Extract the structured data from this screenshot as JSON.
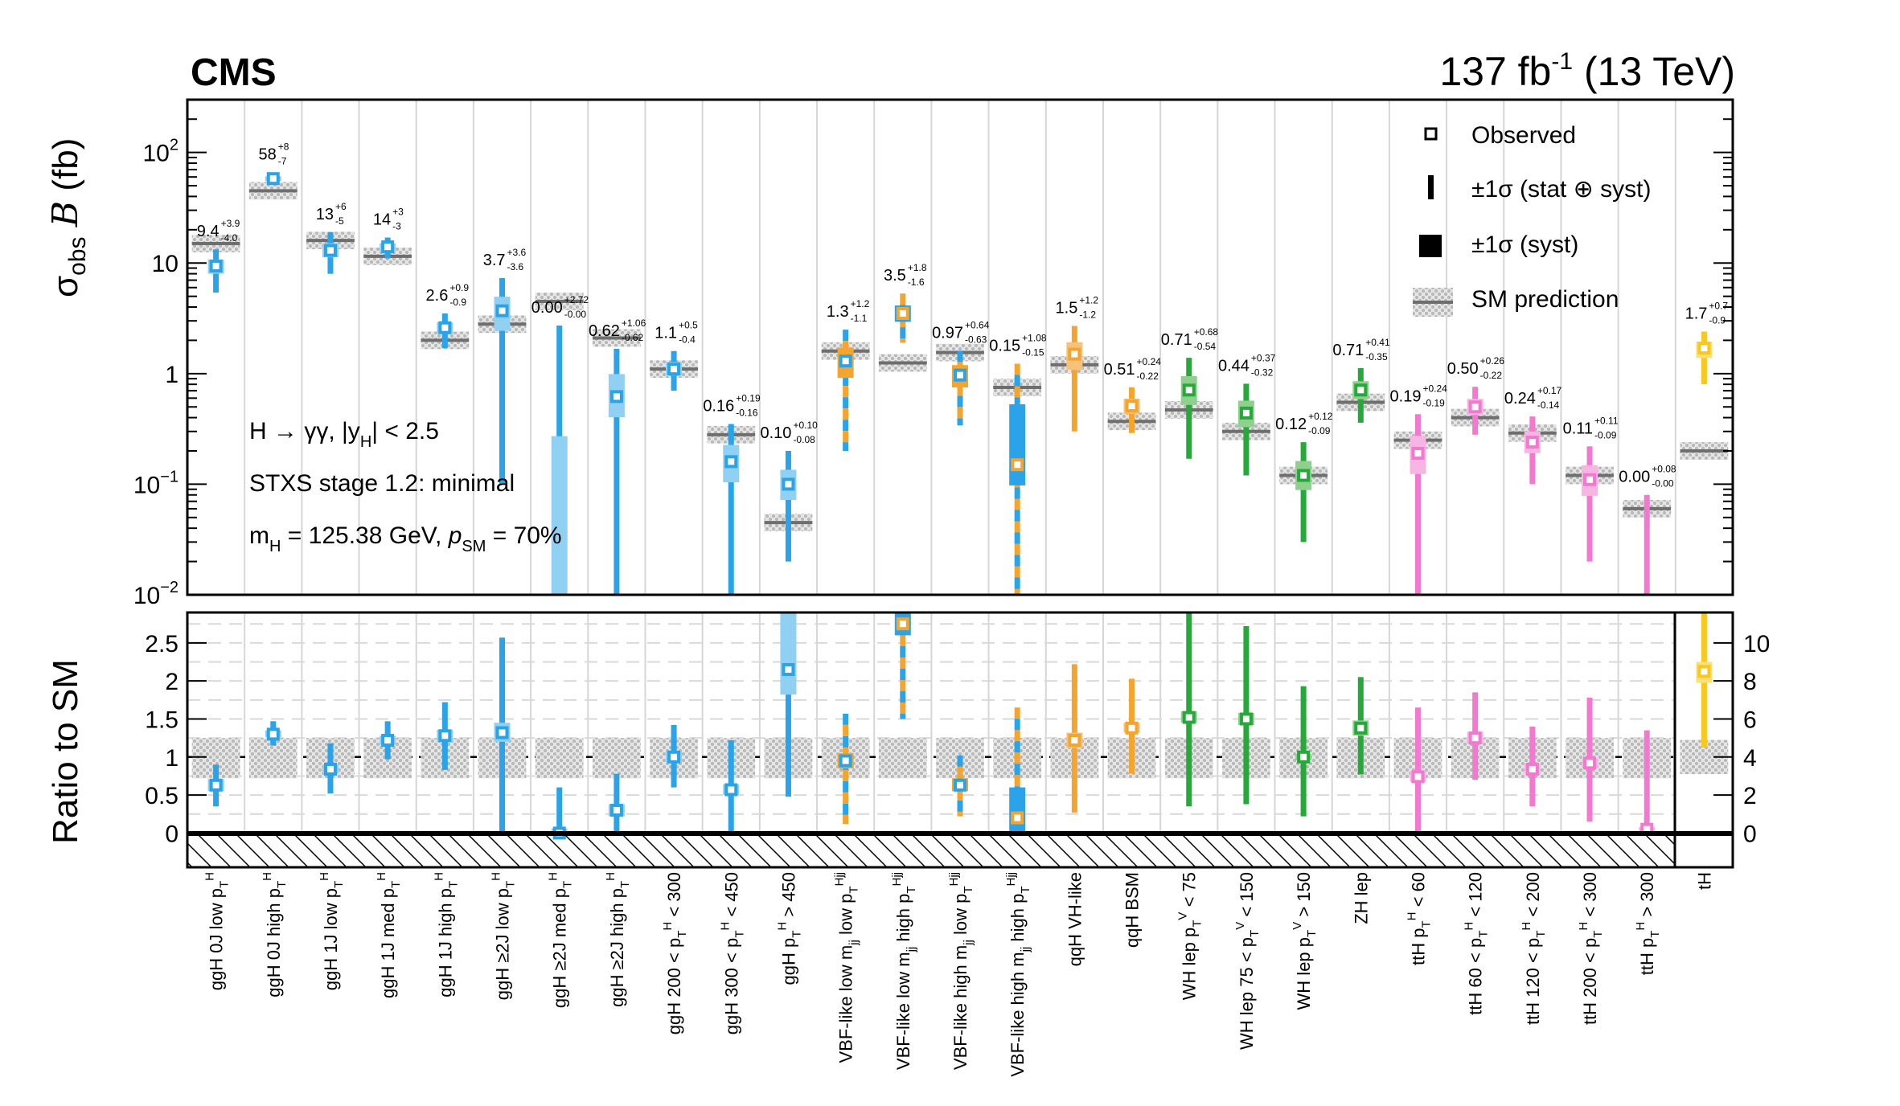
{
  "header": {
    "experiment": "CMS",
    "lumi": "137 fb",
    "lumi_exp": "-1",
    "energy": "(13 TeV)"
  },
  "annotations": {
    "line1": "H → γγ, |y",
    "line1_sub": "H",
    "line1_tail": "| < 2.5",
    "line2": "STXS stage 1.2: minimal",
    "line3_m": "m",
    "line3_msub": "H",
    "line3_mval": " = 125.38 GeV, ",
    "line3_p": "p",
    "line3_psub": "SM",
    "line3_pval": " = 70%"
  },
  "legend": [
    {
      "key": "observed",
      "label": "Observed"
    },
    {
      "key": "total",
      "label": "±1σ (stat ⊕ syst)"
    },
    {
      "key": "syst",
      "label": "±1σ (syst)"
    },
    {
      "key": "sm",
      "label": "SM prediction"
    }
  ],
  "axes": {
    "top_ylabel_sigma": "σ",
    "top_ylabel_sub": "obs",
    "top_ylabel_B": "B",
    "top_ylabel_unit": "(fb)",
    "top_scale": "log",
    "top_ylim": [
      0.01,
      300
    ],
    "top_ticks": [
      {
        "v": 100,
        "base": "10",
        "exp": "2"
      },
      {
        "v": 10,
        "base": "10",
        "exp": ""
      },
      {
        "v": 1,
        "base": "1",
        "exp": ""
      },
      {
        "v": 0.1,
        "base": "10",
        "exp": "−1"
      },
      {
        "v": 0.01,
        "base": "10",
        "exp": "−2"
      }
    ],
    "bottom_ylabel": "Ratio to SM",
    "bottom_ylim": [
      -0.45,
      2.9
    ],
    "bottom_ticks": [
      "0",
      "0.5",
      "1",
      "1.5",
      "2",
      "2.5"
    ],
    "right_ylim": [
      -1.8,
      11.6
    ],
    "right_ticks": [
      "0",
      "2",
      "4",
      "6",
      "8",
      "10"
    ]
  },
  "colors": {
    "ggH": "#2aa3e8",
    "ggH_light": "#8fd0f3",
    "VBF_a": "#2aa3e8",
    "VBF_b": "#f3a530",
    "qqH": "#f3a530",
    "qqH_light": "#f6c27a",
    "WH": "#27a83a",
    "WH_light": "#8fd08f",
    "ZH": "#27a83a",
    "ttH": "#f279cf",
    "ttH_light": "#f7b5e3",
    "tH": "#f8c81e",
    "tH_light": "#fbe07a",
    "sm": "#8a8a8a",
    "band": "#cccccc"
  },
  "chart_data": {
    "type": "scatter",
    "categories": [
      {
        "name": "ggH 0J low pT",
        "label": "ggH 0J low p",
        "sup": "H",
        "grp": "ggH",
        "obs": 9.4,
        "up": 3.9,
        "dn": 4.0,
        "label_text": "9.4",
        "up_text": "+3.9",
        "dn_text": "-4.0",
        "sm": 15,
        "ratio": 0.63,
        "r_lo": 0.35,
        "r_hi": 0.9,
        "rs_lo": 0.55,
        "rs_hi": 0.71
      },
      {
        "name": "ggH 0J high pT",
        "label": "ggH 0J high p",
        "sup": "H",
        "grp": "ggH",
        "obs": 58,
        "up": 8,
        "dn": 7,
        "label_text": "58",
        "up_text": "+8",
        "dn_text": "-7",
        "sm": 45,
        "ratio": 1.3,
        "r_lo": 1.15,
        "r_hi": 1.47,
        "rs_lo": 1.26,
        "rs_hi": 1.35
      },
      {
        "name": "ggH 1J low pT",
        "label": "ggH 1J low p",
        "sup": "H",
        "grp": "ggH",
        "obs": 13,
        "up": 6,
        "dn": 5,
        "label_text": "13",
        "up_text": "+6",
        "dn_text": "-5",
        "sm": 16,
        "ratio": 0.84,
        "r_lo": 0.52,
        "r_hi": 1.18,
        "rs_lo": 0.78,
        "rs_hi": 0.9
      },
      {
        "name": "ggH 1J med pT",
        "label": "ggH 1J med p",
        "sup": "H",
        "grp": "ggH",
        "obs": 14,
        "up": 3,
        "dn": 3,
        "label_text": "14",
        "up_text": "+3",
        "dn_text": "-3",
        "sm": 11.5,
        "ratio": 1.22,
        "r_lo": 0.97,
        "r_hi": 1.47,
        "rs_lo": 1.16,
        "rs_hi": 1.28
      },
      {
        "name": "ggH 1J high pT",
        "label": "ggH 1J high p",
        "sup": "H",
        "grp": "ggH",
        "obs": 2.6,
        "up": 0.9,
        "dn": 0.9,
        "label_text": "2.6",
        "up_text": "+0.9",
        "dn_text": "-0.9",
        "sm": 2.0,
        "ratio": 1.28,
        "r_lo": 0.83,
        "r_hi": 1.72,
        "rs_lo": 1.2,
        "rs_hi": 1.36
      },
      {
        "name": "ggH >=2J low pT",
        "label": "ggH ≥2J low p",
        "sup": "H",
        "grp": "ggH",
        "obs": 3.7,
        "up": 3.6,
        "dn": 3.6,
        "label_text": "3.7",
        "up_text": "+3.6",
        "dn_text": "-3.6",
        "sm": 2.8,
        "ratio": 1.32,
        "r_lo": 0.02,
        "r_hi": 2.57,
        "rs_lo": 1.2,
        "rs_hi": 1.45
      },
      {
        "name": "ggH >=2J med pT",
        "label": "ggH ≥2J med p",
        "sup": "H",
        "grp": "ggH",
        "obs": 0.0,
        "up": 2.72,
        "dn": 0.0,
        "label_text": "0.00",
        "up_text": "+2.72",
        "dn_text": "-0.00",
        "sm": 4.5,
        "ratio": 0.0,
        "r_lo": 0.0,
        "r_hi": 0.6,
        "rs_lo": 0.0,
        "rs_hi": 0.06
      },
      {
        "name": "ggH >=2J high pT",
        "label": "ggH ≥2J high p",
        "sup": "H",
        "grp": "ggH",
        "obs": 0.62,
        "up": 1.06,
        "dn": 0.62,
        "label_text": "0.62",
        "up_text": "+1.06",
        "dn_text": "-0.62",
        "sm": 2.1,
        "ratio": 0.3,
        "r_lo": 0.0,
        "r_hi": 0.78,
        "rs_lo": 0.22,
        "rs_hi": 0.38
      },
      {
        "name": "ggH 200 < pT < 300",
        "label": "ggH 200 < p",
        "tail": " < 300",
        "sup": "H",
        "grp": "ggH",
        "obs": 1.1,
        "up": 0.5,
        "dn": 0.4,
        "label_text": "1.1",
        "up_text": "+0.5",
        "dn_text": "-0.4",
        "sm": 1.1,
        "ratio": 1.0,
        "r_lo": 0.6,
        "r_hi": 1.42,
        "rs_lo": 0.93,
        "rs_hi": 1.07
      },
      {
        "name": "ggH 300 < pT < 450",
        "label": "ggH 300 < p",
        "tail": " < 450",
        "sup": "H",
        "grp": "ggH",
        "obs": 0.16,
        "up": 0.19,
        "dn": 0.16,
        "label_text": "0.16",
        "up_text": "+0.19",
        "dn_text": "-0.16",
        "sm": 0.28,
        "ratio": 0.57,
        "r_lo": 0.0,
        "r_hi": 1.22,
        "rs_lo": 0.5,
        "rs_hi": 0.64
      },
      {
        "name": "ggH pT > 450",
        "label": "ggH p",
        "tail": " > 450",
        "sup": "H",
        "grp": "ggH",
        "obs": 0.1,
        "up": 0.1,
        "dn": 0.08,
        "label_text": "0.10",
        "up_text": "+0.10",
        "dn_text": "-0.08",
        "sm": 0.045,
        "ratio": 2.15,
        "r_lo": 0.48,
        "r_hi": 2.9,
        "rs_lo": 1.82,
        "rs_hi": 2.9
      },
      {
        "name": "VBF-like low mjj low pTHjj",
        "label": "VBF-like low m",
        "jj": true,
        "tail2": " low p",
        "sup": "Hjj",
        "grp": "VBF",
        "obs": 1.3,
        "up": 1.2,
        "dn": 1.1,
        "label_text": "1.3",
        "up_text": "+1.2",
        "dn_text": "-1.1",
        "sm": 1.6,
        "ratio": 0.95,
        "r_lo": 0.12,
        "r_hi": 1.57,
        "rs_lo": 0.85,
        "rs_hi": 1.05
      },
      {
        "name": "VBF-like low mjj high pTHjj",
        "label": "VBF-like low m",
        "jj": true,
        "tail2": " high p",
        "sup": "Hjj",
        "grp": "VBFq",
        "obs": 3.5,
        "up": 1.8,
        "dn": 1.6,
        "label_text": "3.5",
        "up_text": "+1.8",
        "dn_text": "-1.6",
        "sm": 1.25,
        "ratio": 2.75,
        "r_lo": 1.5,
        "r_hi": 2.9,
        "rs_lo": 2.6,
        "rs_hi": 2.9
      },
      {
        "name": "VBF-like high mjj low pTHjj",
        "label": "VBF-like high m",
        "jj": true,
        "tail2": " low p",
        "sup": "Hjj",
        "grp": "VBF",
        "obs": 0.97,
        "up": 0.64,
        "dn": 0.63,
        "label_text": "0.97",
        "up_text": "+0.64",
        "dn_text": "-0.63",
        "sm": 1.55,
        "ratio": 0.63,
        "r_lo": 0.22,
        "r_hi": 1.02,
        "rs_lo": 0.55,
        "rs_hi": 0.72
      },
      {
        "name": "VBF-like high mjj high pTHjj",
        "label": "VBF-like high m",
        "jj": true,
        "tail2": " high p",
        "sup": "Hjj",
        "grp": "VBFq",
        "obs": 0.15,
        "up": 1.08,
        "dn": 0.15,
        "label_text": "0.15",
        "up_text": "+1.08",
        "dn_text": "-0.15",
        "sm": 0.75,
        "ratio": 0.2,
        "r_lo": 0.0,
        "r_hi": 1.65,
        "rs_lo": 0.0,
        "rs_hi": 0.6
      },
      {
        "name": "qqH VH-like",
        "label": "qqH VH-like",
        "sup": "",
        "grp": "qqH",
        "obs": 1.5,
        "up": 1.2,
        "dn": 1.2,
        "label_text": "1.5",
        "up_text": "+1.2",
        "dn_text": "-1.2",
        "sm": 1.2,
        "ratio": 1.22,
        "r_lo": 0.27,
        "r_hi": 2.22,
        "rs_lo": 1.12,
        "rs_hi": 1.32
      },
      {
        "name": "qqH BSM",
        "label": "qqH BSM",
        "sup": "",
        "grp": "qqH",
        "obs": 0.51,
        "up": 0.24,
        "dn": 0.22,
        "label_text": "0.51",
        "up_text": "+0.24",
        "dn_text": "-0.22",
        "sm": 0.37,
        "ratio": 1.38,
        "r_lo": 0.78,
        "r_hi": 2.03,
        "rs_lo": 1.32,
        "rs_hi": 1.45
      },
      {
        "name": "WH lep pTV < 75",
        "label": "WH lep p",
        "tail": " < 75",
        "sup": "V",
        "grp": "WH",
        "obs": 0.71,
        "up": 0.68,
        "dn": 0.54,
        "label_text": "0.71",
        "up_text": "+0.68",
        "dn_text": "-0.54",
        "sm": 0.47,
        "ratio": 1.52,
        "r_lo": 0.35,
        "r_hi": 2.9,
        "rs_lo": 1.45,
        "rs_hi": 1.6
      },
      {
        "name": "WH lep 75 < pTV < 150",
        "label": "WH lep 75 < p",
        "tail": " < 150",
        "sup": "V",
        "grp": "WH",
        "obs": 0.44,
        "up": 0.37,
        "dn": 0.32,
        "label_text": "0.44",
        "up_text": "+0.37",
        "dn_text": "-0.32",
        "sm": 0.3,
        "ratio": 1.5,
        "r_lo": 0.38,
        "r_hi": 2.72,
        "rs_lo": 1.42,
        "rs_hi": 1.58
      },
      {
        "name": "WH lep pTV > 150",
        "label": "WH lep p",
        "tail": " > 150",
        "sup": "V",
        "grp": "WH",
        "obs": 0.12,
        "up": 0.12,
        "dn": 0.09,
        "label_text": "0.12",
        "up_text": "+0.12",
        "dn_text": "-0.09",
        "sm": 0.12,
        "ratio": 1.0,
        "r_lo": 0.22,
        "r_hi": 1.93,
        "rs_lo": 0.96,
        "rs_hi": 1.04
      },
      {
        "name": "ZH lep",
        "label": "ZH lep",
        "sup": "",
        "grp": "ZH",
        "obs": 0.71,
        "up": 0.41,
        "dn": 0.35,
        "label_text": "0.71",
        "up_text": "+0.41",
        "dn_text": "-0.35",
        "sm": 0.55,
        "ratio": 1.38,
        "r_lo": 0.77,
        "r_hi": 2.05,
        "rs_lo": 1.28,
        "rs_hi": 1.48
      },
      {
        "name": "ttH pTH < 60",
        "label": "ttH p",
        "tail": " < 60",
        "sup": "H",
        "grp": "ttH",
        "obs": 0.19,
        "up": 0.24,
        "dn": 0.19,
        "label_text": "0.19",
        "up_text": "+0.24",
        "dn_text": "-0.19",
        "sm": 0.25,
        "ratio": 0.74,
        "r_lo": 0.0,
        "r_hi": 1.65,
        "rs_lo": 0.67,
        "rs_hi": 0.82
      },
      {
        "name": "ttH 60 < pTH < 120",
        "label": "ttH 60 < p",
        "tail": " < 120",
        "sup": "H",
        "grp": "ttH",
        "obs": 0.5,
        "up": 0.26,
        "dn": 0.22,
        "label_text": "0.50",
        "up_text": "+0.26",
        "dn_text": "-0.22",
        "sm": 0.4,
        "ratio": 1.25,
        "r_lo": 0.7,
        "r_hi": 1.85,
        "rs_lo": 1.17,
        "rs_hi": 1.33
      },
      {
        "name": "ttH 120 < pTH < 200",
        "label": "ttH 120 < p",
        "tail": " < 200",
        "sup": "H",
        "grp": "ttH",
        "obs": 0.24,
        "up": 0.17,
        "dn": 0.14,
        "label_text": "0.24",
        "up_text": "+0.17",
        "dn_text": "-0.14",
        "sm": 0.29,
        "ratio": 0.84,
        "r_lo": 0.35,
        "r_hi": 1.4,
        "rs_lo": 0.77,
        "rs_hi": 0.91
      },
      {
        "name": "ttH 200 < pTH < 300",
        "label": "ttH 200 < p",
        "tail": " < 300",
        "sup": "H",
        "grp": "ttH",
        "obs": 0.11,
        "up": 0.11,
        "dn": 0.09,
        "label_text": "0.11",
        "up_text": "+0.11",
        "dn_text": "-0.09",
        "sm": 0.12,
        "ratio": 0.92,
        "r_lo": 0.15,
        "r_hi": 1.78,
        "rs_lo": 0.85,
        "rs_hi": 0.98
      },
      {
        "name": "ttH pTH > 300",
        "label": "ttH p",
        "tail": " > 300",
        "sup": "H",
        "grp": "ttH",
        "obs": 0.0,
        "up": 0.08,
        "dn": 0.0,
        "label_text": "0.00",
        "up_text": "+0.08",
        "dn_text": "-0.00",
        "sm": 0.06,
        "ratio": 0.05,
        "r_lo": 0.0,
        "r_hi": 1.35,
        "rs_lo": 0.0,
        "rs_hi": 0.08
      },
      {
        "name": "tH",
        "label": "tH",
        "sup": "",
        "grp": "tH",
        "obs": 1.7,
        "up": 0.7,
        "dn": 0.9,
        "label_text": "1.7",
        "up_text": "+0.7",
        "dn_text": "-0.9",
        "sm": 0.2,
        "ratio": 8.5,
        "r_lo": 4.5,
        "r_hi": 11.6,
        "rs_lo": 7.9,
        "rs_hi": 9.0
      }
    ]
  }
}
